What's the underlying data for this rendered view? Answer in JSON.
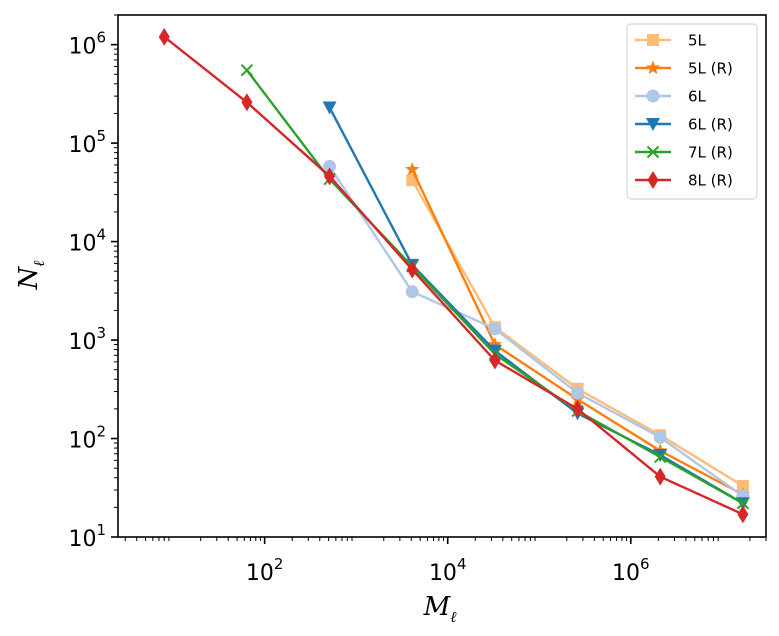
{
  "chart_data": {
    "type": "line",
    "xscale": "log",
    "yscale": "log",
    "xlabel": "M",
    "xlabel_sub": "ℓ",
    "ylabel": "N",
    "ylabel_sub": "ℓ",
    "xlim": [
      2.5,
      30000000
    ],
    "ylim": [
      10,
      2000000
    ],
    "x_ticks": [
      {
        "value": 100,
        "base": "10",
        "exp": "2"
      },
      {
        "value": 10000,
        "base": "10",
        "exp": "4"
      },
      {
        "value": 1000000,
        "base": "10",
        "exp": "6"
      }
    ],
    "y_ticks": [
      {
        "value": 10,
        "base": "10",
        "exp": "1"
      },
      {
        "value": 100,
        "base": "10",
        "exp": "2"
      },
      {
        "value": 1000,
        "base": "10",
        "exp": "3"
      },
      {
        "value": 10000,
        "base": "10",
        "exp": "4"
      },
      {
        "value": 100000,
        "base": "10",
        "exp": "5"
      },
      {
        "value": 1000000,
        "base": "10",
        "exp": "6"
      }
    ],
    "legend_position": "top-right",
    "series": [
      {
        "name": "5L",
        "color": "#ffbb78",
        "marker": "square",
        "x": [
          4096,
          32768,
          262144,
          2097152,
          16777216
        ],
        "y": [
          42000,
          1350,
          320,
          108,
          33
        ]
      },
      {
        "name": "5L (R)",
        "color": "#ff7f0e",
        "marker": "star",
        "x": [
          4096,
          32768,
          262144,
          2097152,
          16777216
        ],
        "y": [
          54000,
          900,
          250,
          75,
          27
        ]
      },
      {
        "name": "6L",
        "color": "#aec7e8",
        "marker": "circle",
        "x": [
          512,
          4096,
          32768,
          262144,
          2097152,
          16777216
        ],
        "y": [
          58000,
          3100,
          1300,
          290,
          103,
          26
        ]
      },
      {
        "name": "6L (R)",
        "color": "#1f77b4",
        "marker": "triangle-down",
        "x": [
          512,
          4096,
          32768,
          262144,
          2097152,
          16777216
        ],
        "y": [
          230000,
          5800,
          780,
          180,
          68,
          22
        ]
      },
      {
        "name": "7L (R)",
        "color": "#2ca02c",
        "marker": "x",
        "x": [
          64,
          512,
          4096,
          32768,
          262144,
          2097152,
          16777216
        ],
        "y": [
          550000,
          43000,
          5600,
          720,
          190,
          65,
          22
        ]
      },
      {
        "name": "8L (R)",
        "color": "#d62728",
        "marker": "diamond",
        "x": [
          8,
          64,
          512,
          4096,
          32768,
          262144,
          2097152,
          16777216
        ],
        "y": [
          1200000,
          260000,
          46000,
          5200,
          620,
          200,
          41,
          17
        ]
      }
    ]
  }
}
